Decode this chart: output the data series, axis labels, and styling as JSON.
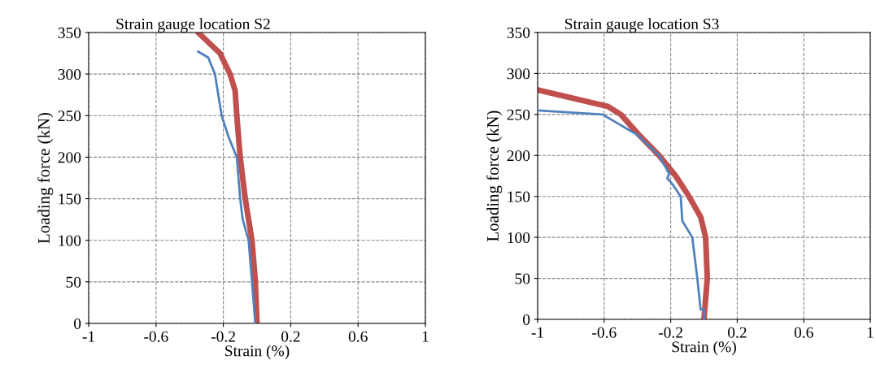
{
  "chart_data": [
    {
      "type": "line",
      "title": "Strain gauge location S2",
      "xlabel": "Strain (%)",
      "ylabel": "Loading force (kN)",
      "xlim": [
        -1,
        1
      ],
      "ylim": [
        0,
        350
      ],
      "xticks": [
        -1,
        -0.6,
        -0.2,
        0.2,
        0.6,
        1
      ],
      "yticks": [
        0,
        50,
        100,
        150,
        200,
        250,
        300,
        350
      ],
      "grid": true,
      "series": [
        {
          "color": "#4f81bd",
          "x": [
            -0.01,
            -0.03,
            -0.05,
            -0.085,
            -0.1,
            -0.12,
            -0.17,
            -0.21,
            -0.23,
            -0.25,
            -0.29,
            -0.35
          ],
          "values": [
            0,
            50,
            100,
            125,
            150,
            200,
            225,
            250,
            275,
            300,
            320,
            327
          ]
        },
        {
          "color": "#c0504d",
          "x": [
            0.0,
            -0.01,
            -0.03,
            -0.07,
            -0.1,
            -0.12,
            -0.13,
            -0.16,
            -0.22,
            -0.35
          ],
          "values": [
            0,
            50,
            100,
            150,
            200,
            250,
            280,
            300,
            325,
            350
          ]
        }
      ]
    },
    {
      "type": "line",
      "title": "Strain gauge location S3",
      "xlabel": "Strain (%)",
      "ylabel": "Loading force (kN)",
      "xlim": [
        -1,
        1
      ],
      "ylim": [
        0,
        350
      ],
      "xticks": [
        -1,
        -0.6,
        -0.2,
        0.2,
        0.6,
        1
      ],
      "yticks": [
        0,
        50,
        100,
        150,
        200,
        250,
        300,
        350
      ],
      "grid": true,
      "series": [
        {
          "color": "#4f81bd",
          "x": [
            0.0,
            0.0,
            -0.02,
            -0.04,
            -0.07,
            -0.13,
            -0.14,
            -0.19,
            -0.22,
            -0.21,
            -0.27,
            -0.4,
            -0.61,
            -1
          ],
          "values": [
            0,
            12,
            12,
            50,
            100,
            120,
            150,
            165,
            172,
            178,
            200,
            225,
            250,
            255
          ]
        },
        {
          "color": "#c0504d",
          "x": [
            0.0,
            0.02,
            0.01,
            -0.02,
            -0.09,
            -0.17,
            -0.27,
            -0.39,
            -0.5,
            -0.58,
            -1
          ],
          "values": [
            0,
            50,
            100,
            125,
            150,
            175,
            200,
            225,
            250,
            260,
            280
          ]
        }
      ]
    }
  ]
}
